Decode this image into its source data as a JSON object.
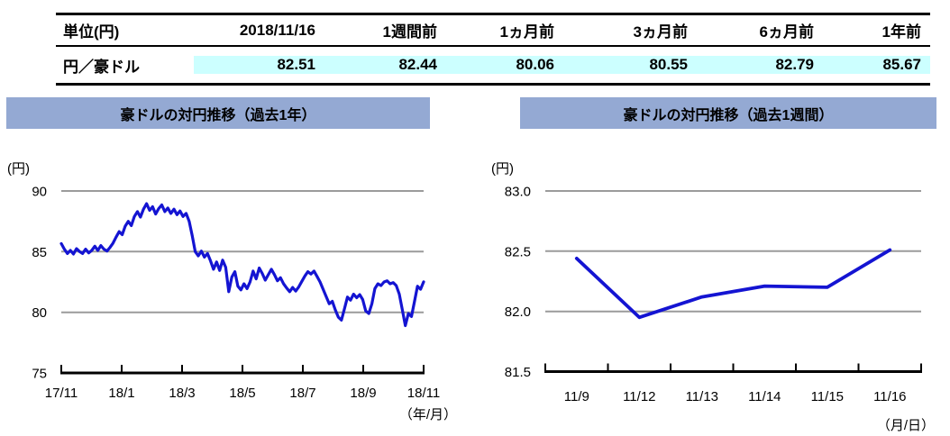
{
  "colors": {
    "line_blue": "#1414D2",
    "banner_bg": "#94A9D3",
    "table_highlight": "#CCFFFF",
    "grid_gray": "#9B9B9B"
  },
  "table": {
    "headers": [
      "単位(円)",
      "2018/11/16",
      "1週間前",
      "1ヵ月前",
      "3ヵ月前",
      "6ヵ月前",
      "1年前"
    ],
    "row": {
      "label": "円／豪ドル",
      "values": [
        "82.51",
        "82.44",
        "80.06",
        "80.55",
        "82.79",
        "85.67"
      ]
    }
  },
  "banners": {
    "left_title": "豪ドルの対円推移（過去1年）",
    "right_title": "豪ドルの対円推移（過去1週間）"
  },
  "chart_data": [
    {
      "type": "line",
      "title": "豪ドルの対円推移（過去1年）",
      "ylabel": "(円)",
      "xlabel": "（年/月）",
      "categories": [
        "17/11",
        "18/1",
        "18/3",
        "18/5",
        "18/7",
        "18/9",
        "18/11"
      ],
      "ylim": [
        75,
        90
      ],
      "yticks": [
        "75",
        "80",
        "85",
        "90"
      ],
      "grid": true,
      "legend": "none",
      "values": [
        85.66,
        85.2,
        84.85,
        85.1,
        84.8,
        85.25,
        85.0,
        84.85,
        85.2,
        84.9,
        85.1,
        85.45,
        85.1,
        85.5,
        85.2,
        85.05,
        85.35,
        85.7,
        86.2,
        86.65,
        86.4,
        87.1,
        87.5,
        87.15,
        87.9,
        88.3,
        87.85,
        88.5,
        88.95,
        88.4,
        88.7,
        88.1,
        88.55,
        88.85,
        88.3,
        88.6,
        88.15,
        88.5,
        88.05,
        88.35,
        87.9,
        88.15,
        87.5,
        86.3,
        85.0,
        84.65,
        85.05,
        84.55,
        84.85,
        84.25,
        83.55,
        84.15,
        83.45,
        84.3,
        83.7,
        81.7,
        82.9,
        83.35,
        82.15,
        81.85,
        82.35,
        81.95,
        82.5,
        83.4,
        82.75,
        83.65,
        83.2,
        82.65,
        83.1,
        83.55,
        83.1,
        82.6,
        82.85,
        82.35,
        82.0,
        81.7,
        82.05,
        81.75,
        82.1,
        82.55,
        83.0,
        83.35,
        83.15,
        83.4,
        82.95,
        82.5,
        81.9,
        81.3,
        80.7,
        80.9,
        80.2,
        79.6,
        79.35,
        80.3,
        81.25,
        81.0,
        81.5,
        81.2,
        81.45,
        81.05,
        80.1,
        79.9,
        80.7,
        81.95,
        82.35,
        82.2,
        82.5,
        82.6,
        82.35,
        82.45,
        82.2,
        81.5,
        80.2,
        78.9,
        79.9,
        79.65,
        80.9,
        82.15,
        81.9,
        82.51
      ]
    },
    {
      "type": "line",
      "title": "豪ドルの対円推移（過去1週間）",
      "ylabel": "(円)",
      "xlabel": "（月/日）",
      "categories": [
        "11/9",
        "11/12",
        "11/13",
        "11/14",
        "11/15",
        "11/16"
      ],
      "ylim": [
        81.5,
        83.0
      ],
      "yticks": [
        "81.5",
        "82.0",
        "82.5",
        "83.0"
      ],
      "grid": true,
      "legend": "none",
      "values": [
        82.44,
        81.95,
        82.12,
        82.21,
        82.2,
        82.51
      ]
    }
  ]
}
